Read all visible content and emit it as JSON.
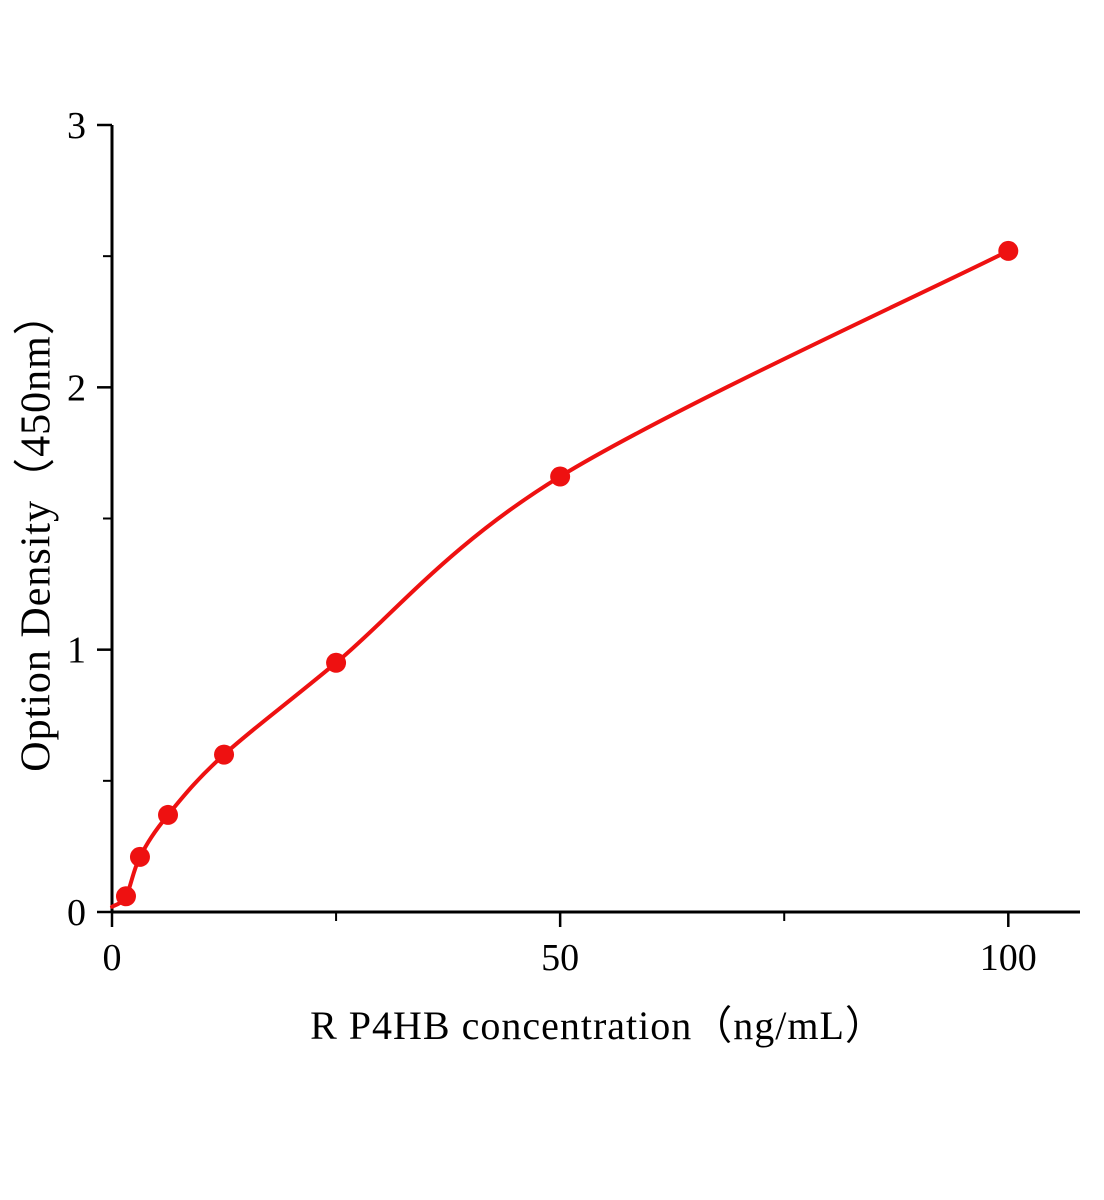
{
  "chart_data": {
    "type": "line",
    "title": "",
    "xlabel": "R P4HB  concentration（ng/mL）",
    "ylabel": "Option Density（450nm）",
    "x": [
      1.56,
      3.12,
      6.25,
      12.5,
      25,
      50,
      100
    ],
    "y": [
      0.06,
      0.21,
      0.37,
      0.6,
      0.95,
      1.66,
      2.52
    ],
    "curve_start": {
      "x": 0,
      "y": 0.02
    },
    "xlim": [
      0,
      108
    ],
    "ylim": [
      0,
      3
    ],
    "x_major_ticks": [
      0,
      50,
      100
    ],
    "x_minor_ticks": [
      25,
      75
    ],
    "y_major_ticks": [
      0,
      1,
      2,
      3
    ],
    "y_minor_ticks": [
      0.5,
      1.5,
      2.5
    ],
    "grid": false,
    "legend_position": "none",
    "colors": {
      "line": "#ee1111",
      "marker": "#ee1111",
      "axis": "#000000",
      "tick_label": "#000000"
    }
  }
}
